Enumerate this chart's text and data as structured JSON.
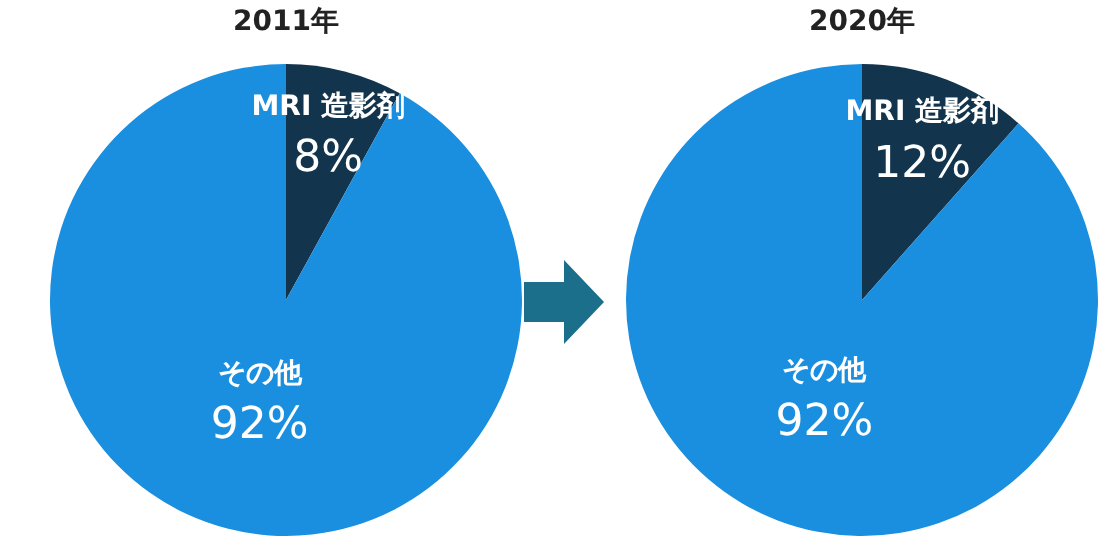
{
  "chart_data": [
    {
      "type": "pie",
      "title": "2011年",
      "categories": [
        "MRI 造影剤",
        "その他"
      ],
      "values": [
        8,
        92
      ],
      "colors": [
        "#12344d",
        "#1a8fe0"
      ],
      "value_labels": [
        "8%",
        "92%"
      ]
    },
    {
      "type": "pie",
      "title": "2020年",
      "categories": [
        "MRI 造影剤",
        "その他"
      ],
      "values": [
        12,
        92
      ],
      "colors": [
        "#12344d",
        "#1a8fe0"
      ],
      "value_labels": [
        "12%",
        "92%"
      ]
    }
  ]
}
